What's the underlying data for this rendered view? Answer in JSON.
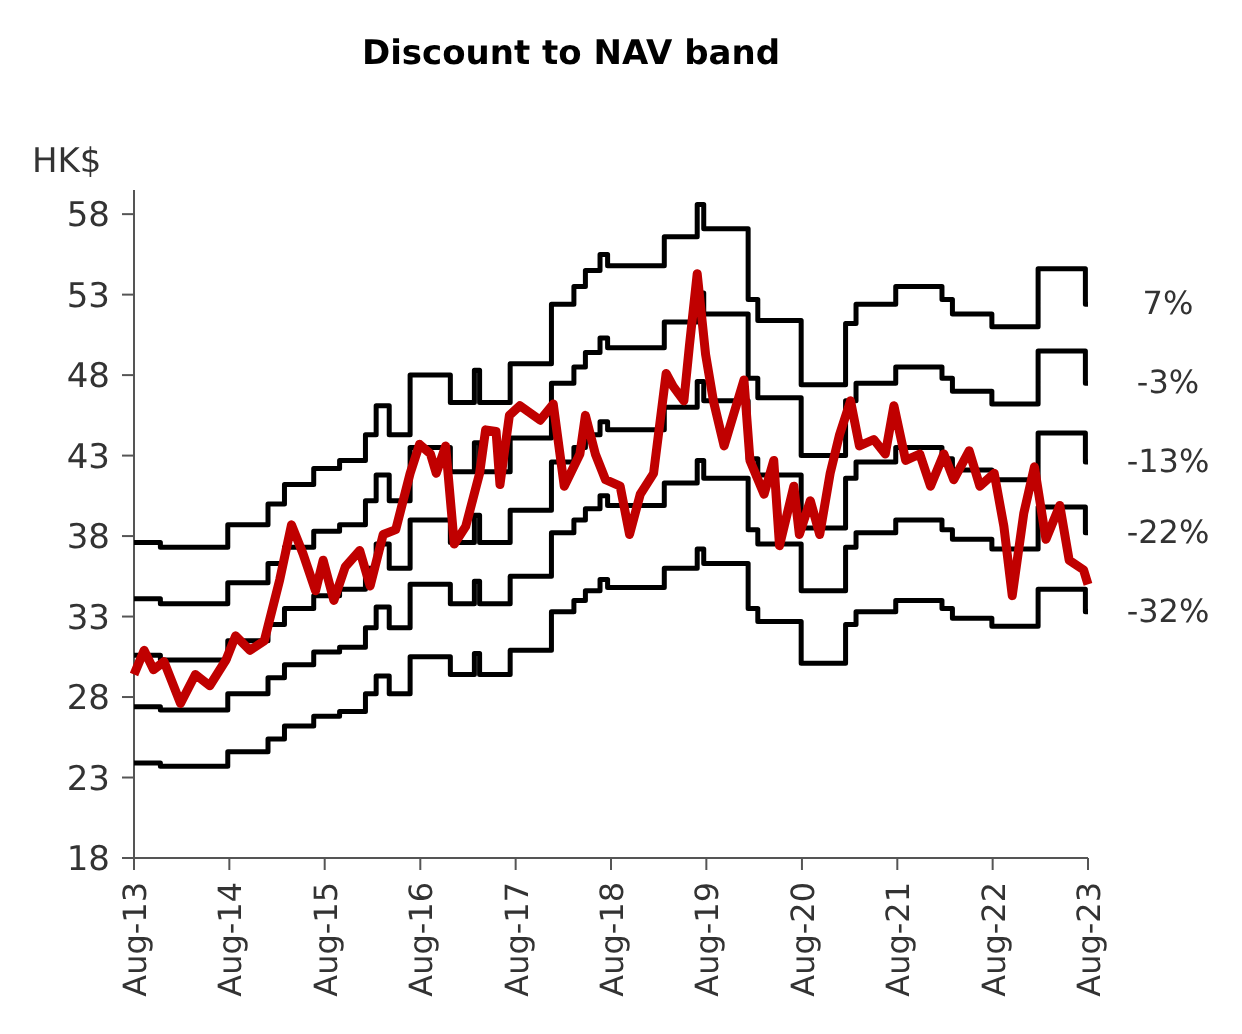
{
  "chart_data": {
    "type": "step",
    "title": "Discount to NAV band",
    "ylabel": "HK$",
    "x": [
      "2013-08-01",
      "2013-11-10",
      "2014-07-26",
      "2014-12-27",
      "2015-02-28",
      "2015-06-20",
      "2015-09-27",
      "2016-01-04",
      "2016-02-14",
      "2016-04-04",
      "2016-06-23",
      "2016-11-24",
      "2017-02-24",
      "2017-03-16",
      "2017-07-11",
      "2017-12-16",
      "2018-03-12",
      "2018-04-25",
      "2018-06-20",
      "2018-07-19",
      "2019-02-21",
      "2019-06-27",
      "2019-07-22",
      "2020-01-08",
      "2020-02-14",
      "2020-07-29",
      "2021-01-15",
      "2021-02-24",
      "2021-07-26",
      "2022-01-19",
      "2022-02-28",
      "2022-07-29",
      "2023-01-22",
      "2023-07-22",
      "2023-08-01"
    ],
    "series": [
      {
        "name": "7%",
        "color": "#000000",
        "values": [
          37.6,
          37.3,
          38.7,
          40.0,
          41.2,
          42.2,
          42.7,
          44.3,
          46.1,
          44.3,
          48.0,
          46.3,
          48.3,
          46.3,
          48.7,
          52.4,
          53.5,
          54.5,
          55.5,
          54.8,
          56.6,
          58.6,
          57.1,
          52.7,
          51.4,
          47.4,
          51.2,
          52.4,
          53.5,
          52.7,
          51.8,
          51.0,
          54.6,
          52.4,
          52.4
        ]
      },
      {
        "name": "-3%",
        "color": "#000000",
        "values": [
          34.1,
          33.8,
          35.1,
          36.3,
          37.3,
          38.3,
          38.7,
          40.2,
          41.8,
          40.2,
          43.5,
          42.0,
          43.8,
          42.0,
          44.1,
          47.5,
          48.5,
          49.4,
          50.3,
          49.7,
          51.3,
          53.1,
          51.8,
          47.8,
          46.6,
          43.0,
          46.4,
          47.5,
          48.5,
          47.8,
          47.0,
          46.2,
          49.5,
          47.5,
          47.5
        ]
      },
      {
        "name": "-13%",
        "color": "#000000",
        "values": [
          30.6,
          30.3,
          31.5,
          32.5,
          33.5,
          34.3,
          34.7,
          36.0,
          37.5,
          36.0,
          39.0,
          37.6,
          39.3,
          37.6,
          39.6,
          42.6,
          43.5,
          44.3,
          45.1,
          44.6,
          46.0,
          47.6,
          46.4,
          42.8,
          41.8,
          38.5,
          41.6,
          42.6,
          43.5,
          42.8,
          42.1,
          41.5,
          44.4,
          42.6,
          42.6
        ]
      },
      {
        "name": "-22%",
        "color": "#000000",
        "values": [
          27.4,
          27.2,
          28.2,
          29.2,
          30.0,
          30.8,
          31.1,
          32.3,
          33.6,
          32.3,
          35.0,
          33.8,
          35.2,
          33.8,
          35.5,
          38.2,
          39.0,
          39.7,
          40.5,
          39.9,
          41.3,
          42.7,
          41.6,
          38.4,
          37.5,
          34.6,
          37.3,
          38.2,
          39.0,
          38.4,
          37.8,
          37.2,
          39.8,
          38.2,
          38.2
        ]
      },
      {
        "name": "-32%",
        "color": "#000000",
        "values": [
          23.9,
          23.7,
          24.6,
          25.4,
          26.2,
          26.8,
          27.1,
          28.2,
          29.3,
          28.2,
          30.5,
          29.4,
          30.7,
          29.4,
          30.9,
          33.3,
          34.0,
          34.6,
          35.3,
          34.8,
          36.0,
          37.2,
          36.3,
          33.5,
          32.7,
          30.1,
          32.5,
          33.3,
          34.0,
          33.5,
          32.9,
          32.4,
          34.7,
          33.3,
          33.3
        ]
      },
      {
        "type": "line",
        "color": "#c00000",
        "x": [
          "2013-08-01",
          "2013-09-09",
          "2013-10-15",
          "2013-11-24",
          "2014-01-26",
          "2014-03-24",
          "2014-05-18",
          "2014-07-19",
          "2014-08-25",
          "2014-10-19",
          "2014-12-13",
          "2015-02-10",
          "2015-03-27",
          "2015-05-10",
          "2015-06-27",
          "2015-07-26",
          "2015-09-05",
          "2015-10-19",
          "2015-12-13",
          "2016-01-22",
          "2016-03-12",
          "2016-04-29",
          "2016-06-23",
          "2016-07-29",
          "2016-09-09",
          "2016-10-01",
          "2016-11-06",
          "2016-12-09",
          "2017-01-22",
          "2017-03-16",
          "2017-04-08",
          "2017-05-18",
          "2017-06-02",
          "2017-07-08",
          "2017-08-17",
          "2017-11-03",
          "2017-12-23",
          "2018-02-03",
          "2018-04-04",
          "2018-04-25",
          "2018-06-02",
          "2018-07-11",
          "2018-09-05",
          "2018-10-11",
          "2018-11-21",
          "2019-01-11",
          "2019-02-28",
          "2019-03-27",
          "2019-05-07",
          "2019-05-28",
          "2019-06-27",
          "2019-07-29",
          "2019-08-28",
          "2019-10-08",
          "2019-11-14",
          "2019-12-23",
          "2020-01-15",
          "2020-03-09",
          "2020-04-15",
          "2020-05-07",
          "2020-07-01",
          "2020-07-22",
          "2020-09-02",
          "2020-10-08",
          "2020-11-17",
          "2020-12-23",
          "2021-02-03",
          "2021-03-09",
          "2021-05-03",
          "2021-06-16",
          "2021-07-19",
          "2021-09-02",
          "2021-10-26",
          "2021-12-06",
          "2022-01-26",
          "2022-03-05",
          "2022-05-03",
          "2022-06-13",
          "2022-08-07",
          "2022-09-13",
          "2022-10-15",
          "2022-11-28",
          "2023-01-08",
          "2023-02-21",
          "2023-04-15",
          "2023-05-21",
          "2023-07-15",
          "2023-08-01"
        ],
        "values": [
          29.4,
          30.9,
          29.7,
          30.2,
          27.6,
          29.4,
          28.7,
          30.3,
          31.8,
          30.9,
          31.5,
          35.3,
          38.7,
          36.9,
          34.6,
          36.5,
          34.0,
          36.1,
          37.1,
          34.9,
          38.1,
          38.4,
          41.9,
          43.7,
          43.1,
          41.9,
          43.6,
          37.5,
          38.6,
          41.9,
          44.6,
          44.5,
          41.2,
          45.5,
          46.1,
          45.2,
          46.2,
          41.1,
          43.1,
          45.5,
          43.1,
          41.5,
          41.1,
          38.1,
          40.6,
          41.9,
          48.1,
          47.3,
          46.4,
          49.8,
          54.3,
          49.3,
          46.4,
          43.6,
          45.6,
          47.7,
          42.7,
          40.6,
          42.7,
          37.4,
          41.1,
          38.1,
          40.2,
          38.1,
          41.9,
          44.3,
          46.4,
          43.6,
          44.0,
          43.1,
          46.1,
          42.7,
          43.1,
          41.1,
          43.1,
          41.5,
          43.3,
          41.1,
          41.9,
          38.6,
          34.3,
          39.4,
          42.3,
          37.8,
          39.9,
          36.5,
          35.9,
          35.0
        ]
      }
    ],
    "xlim": [
      "2013-08",
      "2023-08"
    ],
    "xticks": [
      {
        "value": "2013-08",
        "label": "Aug-13"
      },
      {
        "value": "2014-08",
        "label": "Aug-14"
      },
      {
        "value": "2015-08",
        "label": "Aug-15"
      },
      {
        "value": "2016-08",
        "label": "Aug-16"
      },
      {
        "value": "2017-08",
        "label": "Aug-17"
      },
      {
        "value": "2018-08",
        "label": "Aug-18"
      },
      {
        "value": "2019-08",
        "label": "Aug-19"
      },
      {
        "value": "2020-08",
        "label": "Aug-20"
      },
      {
        "value": "2021-08",
        "label": "Aug-21"
      },
      {
        "value": "2022-08",
        "label": "Aug-22"
      },
      {
        "value": "2023-08",
        "label": "Aug-23"
      }
    ],
    "ylim": [
      18,
      59.5
    ],
    "yticks": [
      18,
      23,
      28,
      33,
      38,
      43,
      48,
      53,
      58
    ],
    "grid": false,
    "marker": "none",
    "line_style": "solid"
  }
}
